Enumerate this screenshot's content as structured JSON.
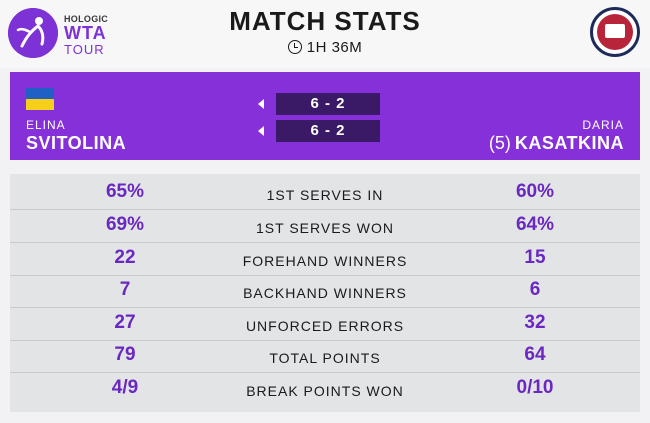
{
  "header": {
    "logo": {
      "sponsor": "HOLOGIC",
      "brand": "WTA",
      "tour": "TOUR"
    },
    "title": "MATCH STATS",
    "duration": "1H 36M",
    "icons": {
      "duration": "clock-icon",
      "badge": "tournament-seal-icon"
    }
  },
  "players": {
    "left": {
      "first_name": "ELINA",
      "last_name": "SVITOLINA",
      "flag": "ukraine-flag"
    },
    "right": {
      "first_name": "DARIA",
      "seed": "(5)",
      "last_name": "KASATKINA"
    }
  },
  "score": {
    "sets": [
      "6 - 2",
      "6 - 2"
    ]
  },
  "stats": [
    {
      "label": "1ST SERVES IN",
      "left": "65%",
      "right": "60%"
    },
    {
      "label": "1ST SERVES WON",
      "left": "69%",
      "right": "64%"
    },
    {
      "label": "FOREHAND WINNERS",
      "left": "22",
      "right": "15"
    },
    {
      "label": "BACKHAND WINNERS",
      "left": "7",
      "right": "6"
    },
    {
      "label": "UNFORCED ERRORS",
      "left": "27",
      "right": "32"
    },
    {
      "label": "TOTAL POINTS",
      "left": "79",
      "right": "64"
    },
    {
      "label": "BREAK POINTS WON",
      "left": "4/9",
      "right": "0/10"
    }
  ],
  "colors": {
    "accent_purple": "#8530d8",
    "stat_value": "#6a28c0",
    "score_box": "#3a1a66",
    "flag_blue": "#1f5fc6",
    "flag_yellow": "#f5cf1c"
  }
}
